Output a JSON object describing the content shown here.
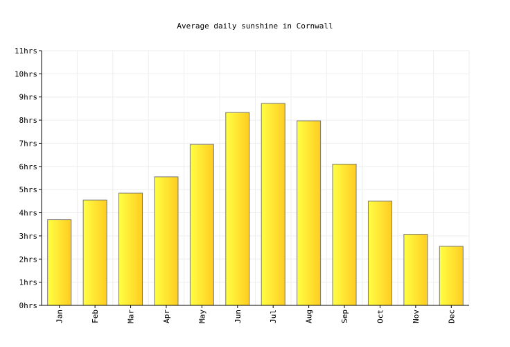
{
  "chart_data": {
    "type": "bar",
    "title": "Average daily sunshine in Cornwall",
    "xlabel": "",
    "ylabel": "",
    "categories": [
      "Jan",
      "Feb",
      "Mar",
      "Apr",
      "May",
      "Jun",
      "Jul",
      "Aug",
      "Sep",
      "Oct",
      "Nov",
      "Dec"
    ],
    "values": [
      3.7,
      4.55,
      4.85,
      5.55,
      6.95,
      8.33,
      8.72,
      7.97,
      6.1,
      4.5,
      3.07,
      2.55
    ],
    "ylim": [
      0,
      11
    ],
    "y_ticks": [
      "0hrs",
      "1hrs",
      "2hrs",
      "3hrs",
      "4hrs",
      "5hrs",
      "6hrs",
      "7hrs",
      "8hrs",
      "9hrs",
      "10hrs",
      "11hrs"
    ],
    "grid": true,
    "legend": "none",
    "colors": {
      "bar_light": "#ffff44",
      "bar_dark": "#ffcc22",
      "bar_stroke": "#777777",
      "grid": "#eeeeee",
      "axis": "#000000"
    }
  }
}
